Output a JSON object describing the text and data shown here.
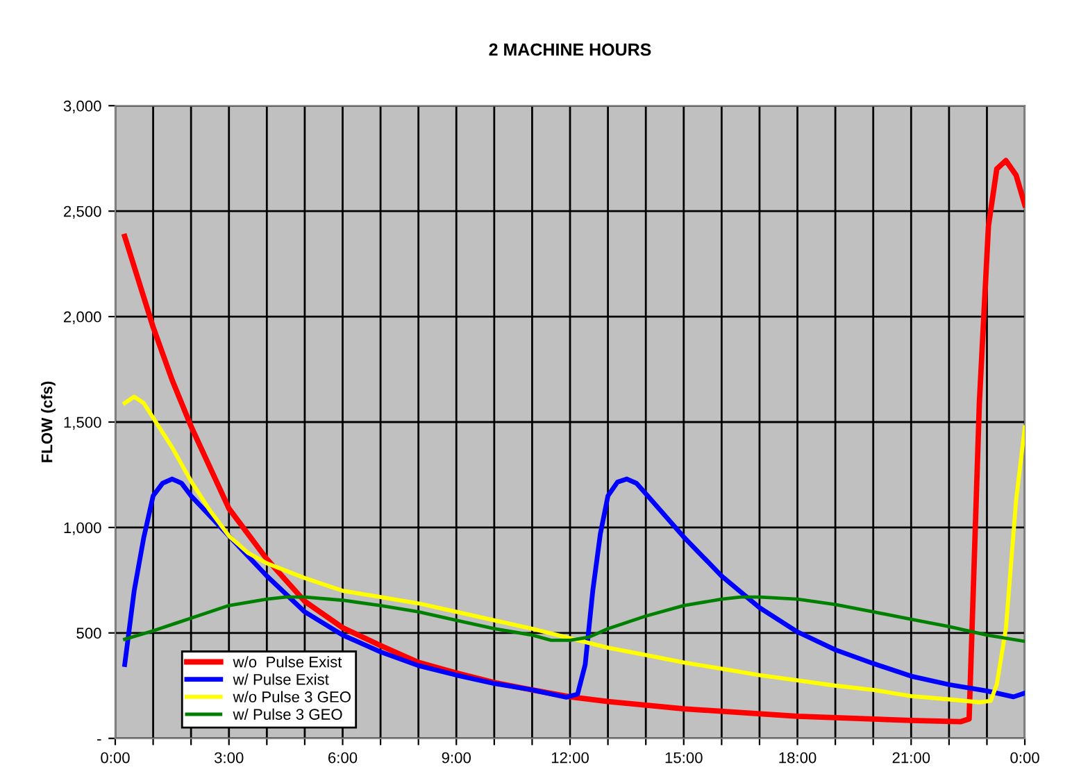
{
  "chart_data": {
    "type": "line",
    "title": "2 MACHINE HOURS",
    "ylabel": "FLOW (cfs)",
    "xlim": [
      0,
      24
    ],
    "ylim": [
      0,
      3000
    ],
    "xticks": [
      {
        "value": 0,
        "label": "0:00"
      },
      {
        "value": 1,
        "label": null
      },
      {
        "value": 2,
        "label": null
      },
      {
        "value": 3,
        "label": "3:00"
      },
      {
        "value": 4,
        "label": null
      },
      {
        "value": 5,
        "label": null
      },
      {
        "value": 6,
        "label": "6:00"
      },
      {
        "value": 7,
        "label": null
      },
      {
        "value": 8,
        "label": null
      },
      {
        "value": 9,
        "label": "9:00"
      },
      {
        "value": 10,
        "label": null
      },
      {
        "value": 11,
        "label": null
      },
      {
        "value": 12,
        "label": "12:00"
      },
      {
        "value": 13,
        "label": null
      },
      {
        "value": 14,
        "label": null
      },
      {
        "value": 15,
        "label": "15:00"
      },
      {
        "value": 16,
        "label": null
      },
      {
        "value": 17,
        "label": null
      },
      {
        "value": 18,
        "label": "18:00"
      },
      {
        "value": 19,
        "label": null
      },
      {
        "value": 20,
        "label": null
      },
      {
        "value": 21,
        "label": "21:00"
      },
      {
        "value": 22,
        "label": null
      },
      {
        "value": 23,
        "label": null
      },
      {
        "value": 24,
        "label": "0:00"
      }
    ],
    "yticks": [
      {
        "value": 0,
        "label": "-"
      },
      {
        "value": 500,
        "label": "500"
      },
      {
        "value": 1000,
        "label": "1,000"
      },
      {
        "value": 1500,
        "label": "1,500"
      },
      {
        "value": 2000,
        "label": "2,000"
      },
      {
        "value": 2500,
        "label": "2,500"
      },
      {
        "value": 3000,
        "label": "3,000"
      }
    ],
    "grid": true,
    "legend": "bottom left",
    "marker": "none",
    "line_style": "solid",
    "series": [
      {
        "name": "w/o  Pulse Exist",
        "color": "#ff0000",
        "x": [
          0.25,
          1,
          1.5,
          2,
          3,
          4,
          5,
          6,
          7,
          8,
          9,
          10,
          11,
          12,
          13,
          15,
          18,
          21,
          22.3,
          22.53,
          22.8,
          23.04,
          23.26,
          23.5,
          23.77,
          24
        ],
        "values": [
          2380,
          1950,
          1700,
          1480,
          1090,
          850,
          650,
          525,
          440,
          360,
          310,
          265,
          230,
          197,
          175,
          140,
          105,
          85,
          79,
          92,
          1590,
          2430,
          2700,
          2740,
          2670,
          2530
        ]
      },
      {
        "name": "w/ Pulse Exist",
        "color": "#0000ff",
        "x": [
          0.25,
          0.5,
          0.75,
          1,
          1.25,
          1.5,
          1.75,
          2,
          3,
          4,
          5,
          6,
          7,
          8,
          9,
          10,
          11,
          11.9,
          12.2,
          12.4,
          12.6,
          12.8,
          13,
          13.25,
          13.5,
          13.75,
          14,
          15,
          16,
          17,
          18,
          19,
          20,
          21,
          22,
          23,
          23.7,
          24
        ],
        "values": [
          350,
          700,
          950,
          1150,
          1210,
          1230,
          1210,
          1150,
          960,
          770,
          600,
          490,
          410,
          345,
          300,
          260,
          230,
          195,
          210,
          350,
          700,
          970,
          1150,
          1215,
          1230,
          1210,
          1160,
          955,
          770,
          620,
          505,
          420,
          355,
          295,
          255,
          225,
          197,
          215
        ]
      },
      {
        "name": "w/o Pulse 3 GEO",
        "color": "#ffff00",
        "x": [
          0.25,
          0.5,
          0.75,
          1,
          1.5,
          2,
          2.5,
          3,
          3.5,
          4,
          5,
          6,
          7,
          8,
          9,
          10,
          11,
          12,
          13,
          14,
          15,
          16,
          17,
          18,
          19,
          20,
          21,
          22,
          22.8,
          23.1,
          23.26,
          23.5,
          23.77,
          24
        ],
        "values": [
          1590,
          1620,
          1590,
          1520,
          1380,
          1220,
          1080,
          960,
          880,
          830,
          760,
          700,
          670,
          640,
          600,
          560,
          520,
          475,
          430,
          395,
          360,
          330,
          300,
          275,
          250,
          230,
          200,
          185,
          171,
          178,
          256,
          520,
          1130,
          1475
        ]
      },
      {
        "name": "w/ Pulse 3 GEO",
        "color": "#008000",
        "x": [
          0.25,
          1,
          2,
          3,
          4,
          4.5,
          5,
          6,
          7,
          8,
          9,
          10,
          11,
          11.5,
          12,
          12.5,
          13,
          14,
          15,
          16,
          16.5,
          17,
          18,
          19,
          20,
          21,
          22,
          23,
          24
        ],
        "values": [
          470,
          510,
          570,
          630,
          660,
          670,
          670,
          655,
          630,
          600,
          560,
          520,
          490,
          465,
          465,
          480,
          520,
          580,
          630,
          660,
          670,
          670,
          660,
          635,
          600,
          565,
          530,
          490,
          460
        ]
      }
    ]
  }
}
